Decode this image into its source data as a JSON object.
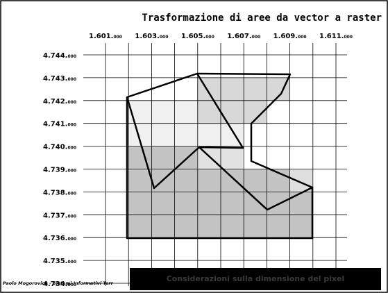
{
  "title": "Trasformazione di aree da vector a raster",
  "x_labels": [
    {
      "main": "1.601.",
      "small": "000"
    },
    {
      "main": "1.603.",
      "small": "000"
    },
    {
      "main": "1.605.",
      "small": "000"
    },
    {
      "main": "1.607.",
      "small": "000"
    },
    {
      "main": "1.609.",
      "small": "000"
    },
    {
      "main": "1.611.",
      "small": "000"
    }
  ],
  "y_labels": [
    {
      "main": "4.744.",
      "small": "000"
    },
    {
      "main": "4.743.",
      "small": "000"
    },
    {
      "main": "4.742.",
      "small": "000"
    },
    {
      "main": "4.741.",
      "small": "000"
    },
    {
      "main": "4.740.",
      "small": "000"
    },
    {
      "main": "4.739.",
      "small": "000"
    },
    {
      "main": "4.738.",
      "small": "000"
    },
    {
      "main": "4.737.",
      "small": "000"
    },
    {
      "main": "4.736.",
      "small": "000"
    },
    {
      "main": "4.735.",
      "small": "000"
    },
    {
      "main": "4.734.",
      "small": "000"
    }
  ],
  "footer": "Paolo Mogorovich - Sistemi Informativi Terr",
  "caption": "Considerazioni sulla dimensione del pixel"
}
